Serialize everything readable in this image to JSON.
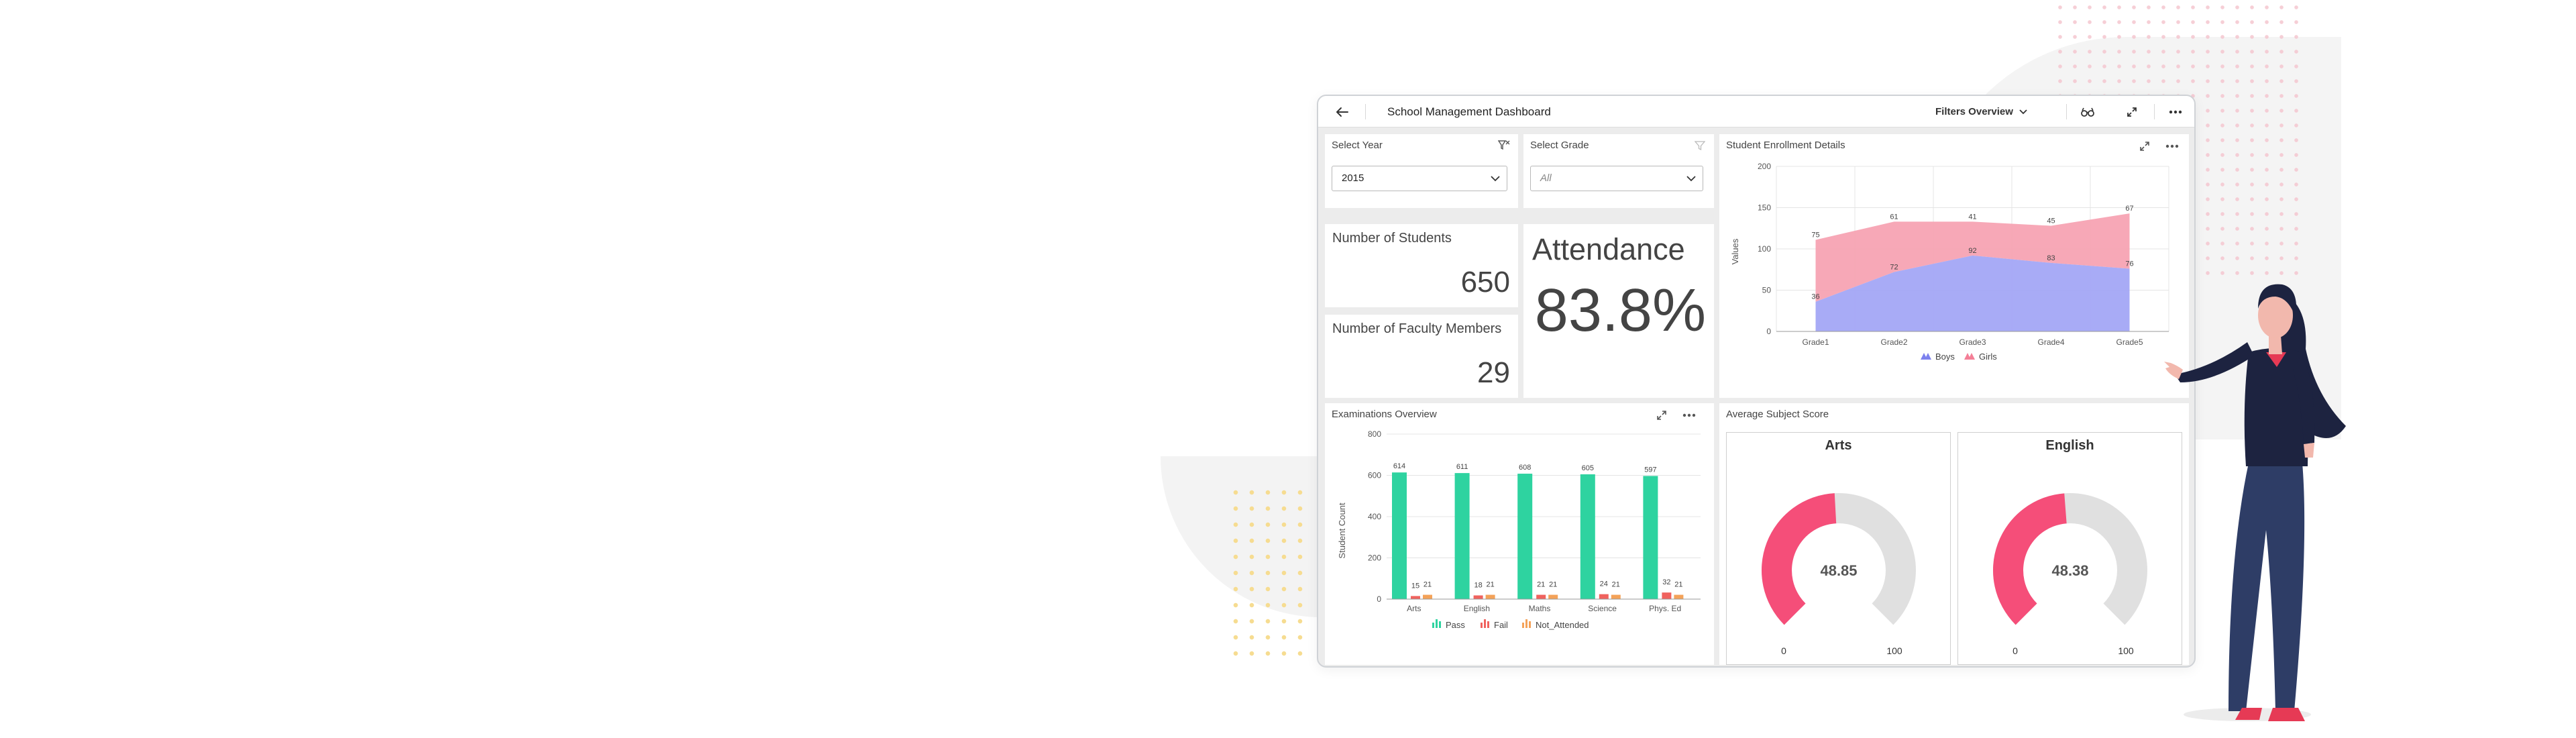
{
  "header": {
    "title": "School Management Dashboard",
    "filters_label": "Filters Overview"
  },
  "filters": {
    "year": {
      "label": "Select Year",
      "value": "2015"
    },
    "grade": {
      "label": "Select Grade",
      "value": "All"
    }
  },
  "kpis": {
    "students": {
      "label": "Number of Students",
      "value": "650"
    },
    "faculty": {
      "label": "Number of Faculty Members",
      "value": "29"
    },
    "attendance": {
      "label": "Attendance",
      "value": "83.8%"
    }
  },
  "enrollment": {
    "title": "Student Enrollment Details",
    "legend": [
      "Boys",
      "Girls"
    ]
  },
  "exams": {
    "title": "Examinations Overview",
    "legend": [
      "Pass",
      "Fail",
      "Not_Attended"
    ]
  },
  "scores": {
    "title": "Average Subject Score",
    "cards": [
      {
        "subject": "Arts",
        "value": "48.85",
        "min": "0",
        "max": "100",
        "fraction": 0.4885
      },
      {
        "subject": "English",
        "value": "48.38",
        "min": "0",
        "max": "100",
        "fraction": 0.4838
      }
    ]
  },
  "colors": {
    "boys": "#a3a6f5",
    "girls": "#f7a3b3",
    "pass": "#2ed3a0",
    "fail": "#f0625e",
    "not_attended": "#f4a259",
    "gauge_value": "#f54e79",
    "gauge_track": "#e0e0e0"
  },
  "chart_data": [
    {
      "type": "area",
      "categories": [
        "Grade1",
        "Grade2",
        "Grade3",
        "Grade4",
        "Grade5"
      ],
      "series": [
        {
          "name": "Boys",
          "values": [
            36,
            72,
            92,
            83,
            76
          ]
        },
        {
          "name": "Girls",
          "values": [
            75,
            61,
            41,
            45,
            67
          ]
        }
      ],
      "stacked": true,
      "ylabel": "Values",
      "ylim": [
        0,
        200
      ],
      "yticks": [
        0,
        50,
        100,
        150,
        200
      ],
      "legend": "bottom",
      "grid": true
    },
    {
      "type": "bar",
      "categories": [
        "Arts",
        "English",
        "Maths",
        "Science",
        "Phys. Ed"
      ],
      "series": [
        {
          "name": "Pass",
          "values": [
            614,
            611,
            608,
            605,
            597
          ]
        },
        {
          "name": "Fail",
          "values": [
            15,
            18,
            21,
            24,
            32
          ]
        },
        {
          "name": "Not_Attended",
          "values": [
            21,
            21,
            21,
            21,
            21
          ]
        }
      ],
      "ylabel": "Student Count",
      "ylim": [
        0,
        800
      ],
      "yticks": [
        0,
        200,
        400,
        600,
        800
      ],
      "legend": "bottom",
      "grid": true
    }
  ]
}
